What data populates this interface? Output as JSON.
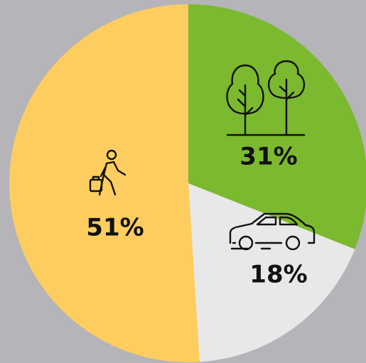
{
  "chart_data": {
    "type": "pie",
    "categories": [
      null,
      null,
      null
    ],
    "values": [
      31,
      18,
      51
    ],
    "value_labels": [
      "31%",
      "18%",
      "51%"
    ],
    "colors": [
      "#7bb92f",
      "#e8e8e8",
      "#fecd5f"
    ]
  }
}
